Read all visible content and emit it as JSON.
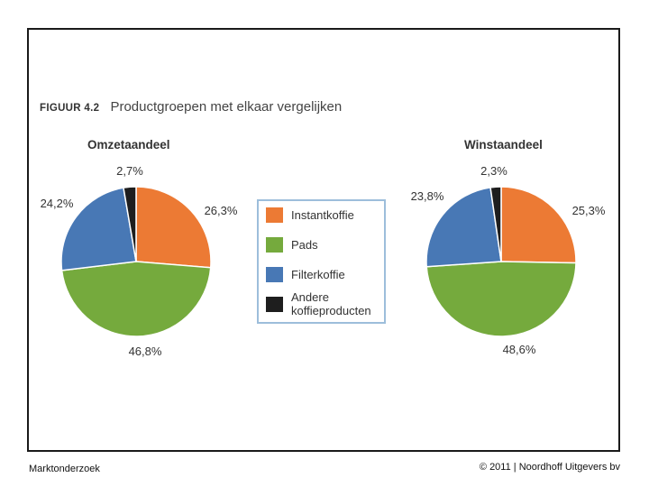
{
  "figure": {
    "number": "FIGUUR 4.2",
    "title": "Productgroepen met elkaar vergelijken"
  },
  "colors": {
    "instant": "#ec7a34",
    "pads": "#75aa3d",
    "filter": "#4878b5",
    "other": "#1e1e1e",
    "legend_border": "#9dbedb"
  },
  "legend": [
    {
      "label": "Instantkoffie",
      "color_key": "instant"
    },
    {
      "label": "Pads",
      "color_key": "pads"
    },
    {
      "label": "Filterkoffie",
      "color_key": "filter"
    },
    {
      "label": "Andere koffieproducten",
      "color_key": "other"
    }
  ],
  "chart_data": [
    {
      "type": "pie",
      "title": "Omzetaandeel",
      "categories": [
        "Instantkoffie",
        "Pads",
        "Filterkoffie",
        "Andere koffieproducten"
      ],
      "values": [
        26.3,
        46.8,
        24.2,
        2.7
      ],
      "value_labels": [
        "26,3%",
        "46,8%",
        "24,2%",
        "2,7%"
      ]
    },
    {
      "type": "pie",
      "title": "Winstaandeel",
      "categories": [
        "Instantkoffie",
        "Pads",
        "Filterkoffie",
        "Andere koffieproducten"
      ],
      "values": [
        25.3,
        48.6,
        23.8,
        2.3
      ],
      "value_labels": [
        "25,3%",
        "48,6%",
        "23,8%",
        "2,3%"
      ]
    }
  ],
  "footer": {
    "left": "Marktonderzoek",
    "right": "© 2011 | Noordhoff Uitgevers bv"
  }
}
